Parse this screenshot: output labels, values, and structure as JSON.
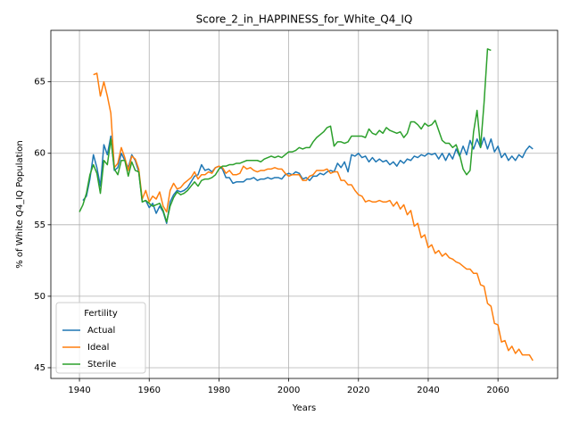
{
  "chart_data": {
    "type": "line",
    "title": "Score_2_in_HAPPINESS_for_White_Q4_IQ",
    "x_label": "Years",
    "y_label": "% of White Q4_IQ Population",
    "x": [
      1940,
      1941,
      1942,
      1943,
      1944,
      1945,
      1946,
      1947,
      1948,
      1949,
      1950,
      1951,
      1952,
      1953,
      1954,
      1955,
      1956,
      1957,
      1958,
      1959,
      1960,
      1961,
      1962,
      1963,
      1964,
      1965,
      1966,
      1967,
      1968,
      1969,
      1970,
      1971,
      1972,
      1973,
      1974,
      1975,
      1976,
      1977,
      1978,
      1979,
      1980,
      1981,
      1982,
      1983,
      1984,
      1985,
      1986,
      1987,
      1988,
      1989,
      1990,
      1991,
      1992,
      1993,
      1994,
      1995,
      1996,
      1997,
      1998,
      1999,
      2000,
      2001,
      2002,
      2003,
      2004,
      2005,
      2006,
      2007,
      2008,
      2009,
      2010,
      2011,
      2012,
      2013,
      2014,
      2015,
      2016,
      2017,
      2018,
      2019,
      2020,
      2021,
      2022,
      2023,
      2024,
      2025,
      2026,
      2027,
      2028,
      2029,
      2030,
      2031,
      2032,
      2033,
      2034,
      2035,
      2036,
      2037,
      2038,
      2039,
      2040,
      2041,
      2042,
      2043,
      2044,
      2045,
      2046,
      2047,
      2048,
      2049,
      2050,
      2051,
      2052,
      2053,
      2054,
      2055,
      2056,
      2057,
      2058,
      2059,
      2060,
      2061,
      2062,
      2063,
      2064,
      2065,
      2066,
      2067,
      2068,
      2069,
      2070
    ],
    "series": [
      {
        "name": "Actual",
        "color": "#1f77b4",
        "values": [
          null,
          56.7,
          57.0,
          58.2,
          59.9,
          59.0,
          57.7,
          60.6,
          59.9,
          61.2,
          58.8,
          59.0,
          60.0,
          59.5,
          59.0,
          59.9,
          59.5,
          58.7,
          56.6,
          56.7,
          56.2,
          56.5,
          55.8,
          56.3,
          55.9,
          55.1,
          56.6,
          57.1,
          57.4,
          57.3,
          57.4,
          57.6,
          58.0,
          58.4,
          58.5,
          59.2,
          58.8,
          58.9,
          58.7,
          59.0,
          59.1,
          58.9,
          58.3,
          58.3,
          57.9,
          58.0,
          58.0,
          58.0,
          58.2,
          58.2,
          58.3,
          58.1,
          58.2,
          58.2,
          58.3,
          58.2,
          58.3,
          58.3,
          58.2,
          58.5,
          58.6,
          58.5,
          58.7,
          58.6,
          58.2,
          58.3,
          58.1,
          58.4,
          58.4,
          58.6,
          58.5,
          58.7,
          58.8,
          58.7,
          59.3,
          59.0,
          59.4,
          58.7,
          59.9,
          59.8,
          60.0,
          59.7,
          59.8,
          59.4,
          59.7,
          59.4,
          59.6,
          59.4,
          59.5,
          59.2,
          59.4,
          59.1,
          59.5,
          59.3,
          59.6,
          59.5,
          59.8,
          59.7,
          59.9,
          59.8,
          60.0,
          59.9,
          60.0,
          59.6,
          60.0,
          59.5,
          60.0,
          59.6,
          60.3,
          59.8,
          60.5,
          59.9,
          60.9,
          60.3,
          61.0,
          60.4,
          61.1,
          60.3,
          61.0,
          60.1,
          60.5,
          59.7,
          60.0,
          59.5,
          59.8,
          59.5,
          59.9,
          59.7,
          60.2,
          60.5,
          60.3
        ]
      },
      {
        "name": "Ideal",
        "color": "#ff7f0e",
        "values": [
          null,
          null,
          null,
          null,
          65.5,
          65.6,
          64.0,
          65.0,
          64.0,
          62.8,
          59.0,
          59.3,
          60.4,
          59.7,
          58.8,
          59.8,
          59.6,
          58.9,
          56.8,
          57.4,
          56.6,
          57.0,
          56.8,
          57.3,
          56.3,
          55.9,
          57.4,
          57.9,
          57.5,
          57.6,
          57.9,
          58.1,
          58.3,
          58.7,
          58.2,
          58.5,
          58.5,
          58.7,
          58.6,
          59.0,
          59.1,
          59.0,
          58.6,
          58.8,
          58.5,
          58.5,
          58.6,
          59.1,
          58.9,
          59.0,
          58.8,
          58.7,
          58.8,
          58.8,
          58.9,
          58.9,
          59.0,
          58.9,
          58.9,
          58.6,
          58.4,
          58.5,
          58.5,
          58.5,
          58.1,
          58.1,
          58.4,
          58.5,
          58.8,
          58.8,
          58.8,
          58.9,
          58.6,
          58.7,
          58.7,
          58.1,
          58.1,
          57.8,
          57.8,
          57.4,
          57.1,
          57.0,
          56.6,
          56.7,
          56.6,
          56.6,
          56.7,
          56.6,
          56.6,
          56.7,
          56.3,
          56.6,
          56.1,
          56.4,
          55.7,
          56.0,
          54.9,
          55.1,
          54.1,
          54.3,
          53.4,
          53.6,
          53.0,
          53.2,
          52.8,
          53.0,
          52.7,
          52.6,
          52.4,
          52.3,
          52.1,
          51.9,
          51.9,
          51.6,
          51.6,
          50.8,
          50.7,
          49.5,
          49.3,
          48.1,
          48.0,
          46.8,
          46.9,
          46.2,
          46.5,
          46.0,
          46.3,
          45.9,
          45.9,
          45.9,
          45.5
        ]
      },
      {
        "name": "Sterile",
        "color": "#2ca02c",
        "values": [
          55.9,
          56.4,
          57.2,
          58.5,
          59.2,
          58.6,
          57.2,
          59.5,
          59.2,
          61.0,
          58.9,
          58.5,
          59.5,
          59.5,
          58.4,
          59.4,
          58.8,
          58.7,
          56.6,
          56.7,
          56.5,
          56.3,
          56.4,
          56.5,
          56.0,
          55.2,
          56.3,
          56.9,
          57.3,
          57.1,
          57.2,
          57.4,
          57.7,
          58.0,
          57.7,
          58.1,
          58.2,
          58.2,
          58.3,
          58.5,
          58.9,
          59.1,
          59.1,
          59.2,
          59.2,
          59.3,
          59.3,
          59.4,
          59.5,
          59.5,
          59.5,
          59.5,
          59.4,
          59.6,
          59.7,
          59.8,
          59.7,
          59.8,
          59.7,
          59.9,
          60.1,
          60.1,
          60.2,
          60.4,
          60.3,
          60.4,
          60.4,
          60.8,
          61.1,
          61.3,
          61.5,
          61.8,
          61.9,
          60.5,
          60.8,
          60.8,
          60.7,
          60.8,
          61.2,
          61.2,
          61.2,
          61.2,
          61.1,
          61.7,
          61.4,
          61.3,
          61.6,
          61.4,
          61.8,
          61.6,
          61.5,
          61.4,
          61.5,
          61.1,
          61.4,
          62.2,
          62.2,
          62.0,
          61.7,
          62.1,
          61.9,
          62.0,
          62.3,
          61.6,
          60.9,
          60.7,
          60.7,
          60.4,
          60.6,
          59.9,
          58.9,
          58.5,
          58.8,
          61.5,
          63.0,
          60.4,
          63.5,
          67.3,
          67.2,
          null,
          null,
          null,
          null,
          null,
          null,
          null,
          null,
          null,
          null,
          null,
          null
        ]
      }
    ],
    "xlim": [
      1931.8,
      2077.1
    ],
    "ylim": [
      44.25,
      68.6
    ],
    "xticks": [
      1940,
      1960,
      1980,
      2000,
      2020,
      2040,
      2060
    ],
    "yticks": [
      45,
      50,
      55,
      60,
      65
    ],
    "grid": true,
    "legend_title": "Fertility",
    "legend_position": "lower-left"
  }
}
